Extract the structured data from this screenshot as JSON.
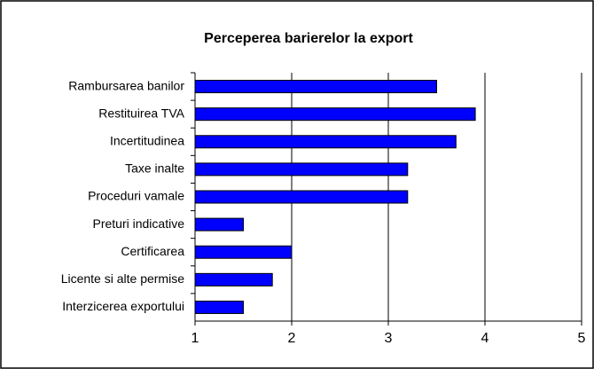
{
  "chart_data": {
    "type": "bar",
    "orientation": "horizontal",
    "title": "Perceperea barierelor la export",
    "categories": [
      "Rambursarea banilor",
      "Restituirea TVA",
      "Incertitudinea",
      "Taxe inalte",
      "Proceduri vamale",
      "Preturi indicative",
      "Certificarea",
      "Licente si alte permise",
      "Interzicerea exportului"
    ],
    "values": [
      3.5,
      3.9,
      3.7,
      3.2,
      3.2,
      1.5,
      2.0,
      1.8,
      1.5
    ],
    "color": "#0000ff",
    "xlim": [
      1,
      5
    ],
    "xticks": [
      1,
      2,
      3,
      4,
      5
    ],
    "grid": true
  }
}
